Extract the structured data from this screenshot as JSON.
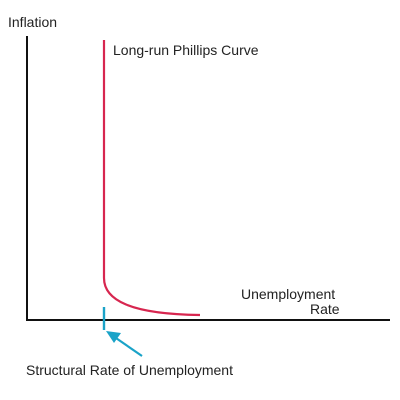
{
  "labels": {
    "y_axis": "Inflation",
    "curve": "Long-run Phillips Curve",
    "x_axis_line1": "Unemployment",
    "x_axis_line2": "Rate",
    "structural": "Structural Rate of Unemployment"
  },
  "colors": {
    "axis": "#111111",
    "curve": "#d7264f",
    "marker": "#1aa3c8",
    "text": "#222222"
  }
}
